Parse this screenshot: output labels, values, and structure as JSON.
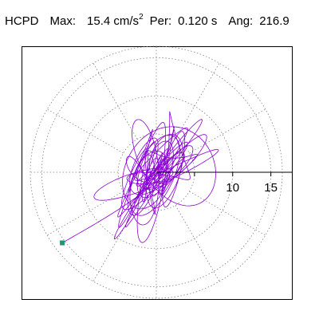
{
  "header": {
    "app": "HCPD",
    "max_label": "Max:",
    "max_value": "15.4 cm/s",
    "max_exp": "2",
    "per_label": "Per:",
    "per_value": "0.120 s",
    "ang_label": "Ang:",
    "ang_value": "216.9"
  },
  "chart_data": {
    "type": "polar",
    "title": "HCPD Max: 15.4 cm/s2 Per: 0.120 s Ang: 216.9",
    "radial_ticks": [
      5,
      10,
      15
    ],
    "radial_tick_labels": [
      "10",
      "15"
    ],
    "radial_max": 16.5,
    "angular_spokes_deg": [
      30,
      60,
      90,
      120,
      150,
      180,
      210,
      240,
      270,
      300,
      330
    ],
    "grid": "dotted",
    "max_magnitude": 15.4,
    "max_angle_deg": 216.9,
    "colors": {
      "trace": "#8b00d6",
      "end_marker": "#1a9870",
      "grid": "#808080",
      "axis": "#000000"
    }
  }
}
